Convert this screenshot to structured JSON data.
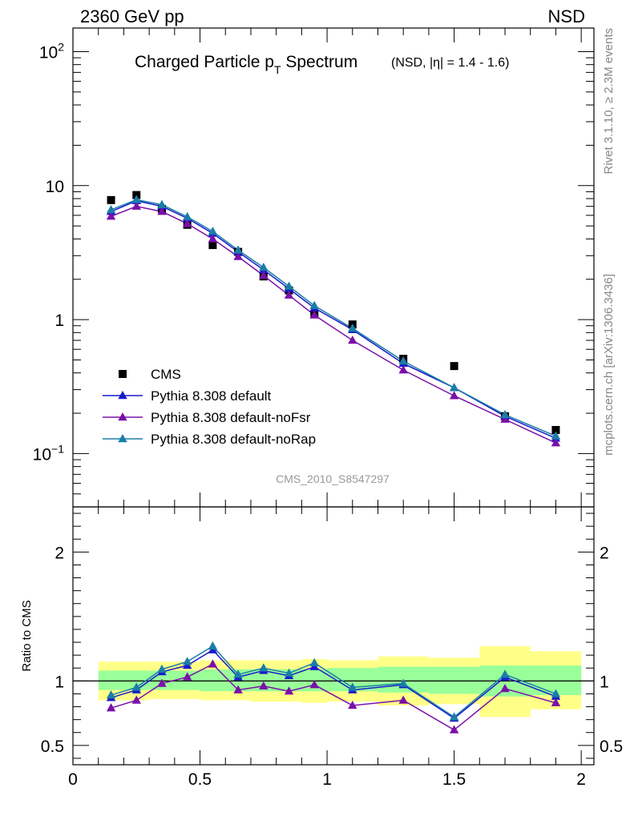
{
  "header": {
    "left": "2360 GeV pp",
    "right": "NSD"
  },
  "side_labels": {
    "rivet": "Rivet 3.1.10, ≥ 2.3M events",
    "mcplots": "mcplots.cern.ch [arXiv:1306.3436]"
  },
  "title": {
    "main": "Charged Particle p",
    "sub": "T",
    "rest": " Spectrum",
    "small": "(NSD, |η| = 1.4 - 1.6)"
  },
  "watermark": "CMS_2010_S8547297",
  "colors": {
    "data": "#000000",
    "default": "#1a1acc",
    "noFsr": "#7a10a8",
    "noRap": "#1a7ea8",
    "band_outer": "#ffff88",
    "band_inner": "#99ff99"
  },
  "chart_data": [
    {
      "type": "scatter",
      "panel": "main",
      "yscale": "log",
      "xlim": [
        0,
        2.05
      ],
      "ylim": [
        0.04,
        150
      ],
      "y_ticks": [
        {
          "v": 100,
          "label": "10",
          "sup": "2"
        },
        {
          "v": 10,
          "label": "10",
          "sup": ""
        },
        {
          "v": 1,
          "label": "1",
          "sup": ""
        },
        {
          "v": 0.1,
          "label": "10",
          "sup": "−1"
        }
      ],
      "x": [
        0.15,
        0.25,
        0.35,
        0.45,
        0.55,
        0.65,
        0.75,
        0.85,
        0.95,
        1.1,
        1.3,
        1.5,
        1.7,
        1.9
      ],
      "series": [
        {
          "name": "CMS",
          "key": "data",
          "marker": "square",
          "line": false,
          "values": [
            7.8,
            8.5,
            6.7,
            5.1,
            3.6,
            3.2,
            2.1,
            1.65,
            1.1,
            0.92,
            0.51,
            0.45,
            0.19,
            0.15
          ]
        },
        {
          "name": "Pythia 8.308 default",
          "key": "default",
          "marker": "triangle",
          "line": true,
          "values": [
            6.4,
            7.7,
            7.0,
            5.7,
            4.4,
            3.2,
            2.35,
            1.7,
            1.22,
            0.84,
            0.47,
            0.31,
            0.19,
            0.13
          ]
        },
        {
          "name": "Pythia 8.308 default-noFsr",
          "key": "noFsr",
          "marker": "triangle",
          "line": true,
          "values": [
            5.9,
            7.0,
            6.4,
            5.2,
            4.0,
            2.95,
            2.13,
            1.52,
            1.08,
            0.7,
            0.42,
            0.27,
            0.18,
            0.12
          ]
        },
        {
          "name": "Pythia 8.308 default-noRap",
          "key": "noRap",
          "marker": "triangle",
          "line": true,
          "values": [
            6.6,
            7.85,
            7.2,
            5.85,
            4.55,
            3.3,
            2.45,
            1.77,
            1.27,
            0.86,
            0.49,
            0.31,
            0.195,
            0.135
          ]
        }
      ]
    },
    {
      "type": "line",
      "panel": "ratio",
      "ylabel": "Ratio to CMS",
      "xlim": [
        0,
        2.05
      ],
      "ylim": [
        0.35,
        2.35
      ],
      "x_ticks": [
        0,
        0.5,
        1,
        1.5,
        2
      ],
      "x_tick_labels": [
        "0",
        "0.5",
        "1",
        "1.5",
        "2"
      ],
      "y_ticks": [
        0.5,
        1,
        2
      ],
      "y_tick_labels": [
        "0.5",
        "1",
        "2"
      ],
      "x": [
        0.15,
        0.25,
        0.35,
        0.45,
        0.55,
        0.65,
        0.75,
        0.85,
        0.95,
        1.1,
        1.3,
        1.5,
        1.7,
        1.9
      ],
      "bands": {
        "bins": [
          [
            0.1,
            0.2
          ],
          [
            0.2,
            0.3
          ],
          [
            0.3,
            0.4
          ],
          [
            0.4,
            0.5
          ],
          [
            0.5,
            0.6
          ],
          [
            0.6,
            0.7
          ],
          [
            0.7,
            0.8
          ],
          [
            0.8,
            0.9
          ],
          [
            0.9,
            1.0
          ],
          [
            1.0,
            1.2
          ],
          [
            1.2,
            1.4
          ],
          [
            1.4,
            1.6
          ],
          [
            1.6,
            1.8
          ],
          [
            1.8,
            2.0
          ]
        ],
        "outer": [
          [
            0.85,
            1.15
          ],
          [
            0.85,
            1.15
          ],
          [
            0.86,
            1.15
          ],
          [
            0.86,
            1.15
          ],
          [
            0.85,
            1.16
          ],
          [
            0.85,
            1.16
          ],
          [
            0.84,
            1.16
          ],
          [
            0.84,
            1.16
          ],
          [
            0.83,
            1.17
          ],
          [
            0.84,
            1.16
          ],
          [
            0.81,
            1.19
          ],
          [
            0.82,
            1.18
          ],
          [
            0.72,
            1.27
          ],
          [
            0.78,
            1.23
          ]
        ],
        "inner": [
          [
            0.93,
            1.08
          ],
          [
            0.93,
            1.08
          ],
          [
            0.93,
            1.08
          ],
          [
            0.93,
            1.08
          ],
          [
            0.92,
            1.09
          ],
          [
            0.92,
            1.09
          ],
          [
            0.92,
            1.09
          ],
          [
            0.92,
            1.09
          ],
          [
            0.92,
            1.09
          ],
          [
            0.92,
            1.1
          ],
          [
            0.91,
            1.11
          ],
          [
            0.9,
            1.11
          ],
          [
            0.88,
            1.12
          ],
          [
            0.89,
            1.12
          ]
        ]
      },
      "series": [
        {
          "name": "Pythia 8.308 default",
          "key": "default",
          "values": [
            0.87,
            0.93,
            1.07,
            1.12,
            1.24,
            1.03,
            1.08,
            1.04,
            1.11,
            0.93,
            0.97,
            0.71,
            1.03,
            0.88
          ]
        },
        {
          "name": "Pythia 8.308 default-noFsr",
          "key": "noFsr",
          "values": [
            0.79,
            0.85,
            0.98,
            1.03,
            1.13,
            0.93,
            0.96,
            0.92,
            0.97,
            0.81,
            0.85,
            0.62,
            0.94,
            0.83
          ]
        },
        {
          "name": "Pythia 8.308 default-noRap",
          "key": "noRap",
          "values": [
            0.89,
            0.95,
            1.09,
            1.15,
            1.27,
            1.05,
            1.1,
            1.06,
            1.14,
            0.95,
            0.98,
            0.72,
            1.05,
            0.9
          ]
        }
      ]
    }
  ]
}
